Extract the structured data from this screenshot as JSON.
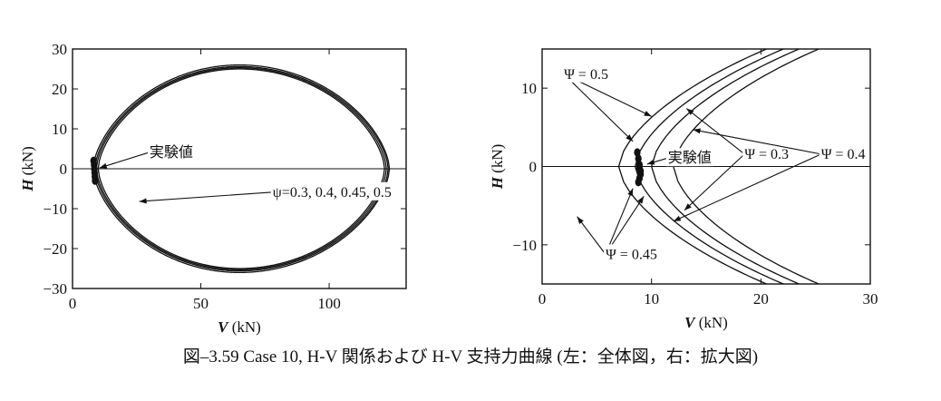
{
  "caption": "図‒3.59 Case 10, H-V 関係および H-V 支持力曲線 (左：全体図，右：拡大図)",
  "chart_data": [
    {
      "type": "line",
      "xlabel": "V (kN)",
      "ylabel": "H (kN)",
      "xlim": [
        0,
        130
      ],
      "ylim": [
        -30,
        30
      ],
      "xticks": [
        "0",
        "50",
        "100"
      ],
      "yticks": [
        "30",
        "20",
        "10",
        "0",
        "−10",
        "−20",
        "−30"
      ],
      "xtick_values": [
        0,
        50,
        100
      ],
      "ytick_values": [
        30,
        20,
        10,
        0,
        -10,
        -20,
        -30
      ],
      "series": [
        {
          "kind": "envelope",
          "v0": 8.0,
          "v1": 123.5,
          "hmax": 26.0,
          "peak_v": 65
        },
        {
          "kind": "envelope",
          "v0": 8.7,
          "v1": 123.0,
          "hmax": 25.6,
          "peak_v": 65
        },
        {
          "kind": "envelope",
          "v0": 9.3,
          "v1": 122.3,
          "hmax": 25.3,
          "peak_v": 65
        },
        {
          "kind": "envelope",
          "v0": 10.0,
          "v1": 121.6,
          "hmax": 25.0,
          "peak_v": 65
        },
        {
          "kind": "experiment",
          "v": [
            8.2,
            8.4,
            8.5,
            8.6,
            8.7,
            8.8
          ],
          "h": [
            2.0,
            1.0,
            0.0,
            -1.0,
            -2.0,
            -3.0
          ]
        }
      ],
      "annotations": [
        {
          "text": "実験値",
          "at": [
            30,
            3.0
          ],
          "arrow_to": [
            10.5,
            0.2
          ]
        },
        {
          "text": "ψ=0.3, 0.4, 0.45, 0.5",
          "at": [
            78,
            -7.0
          ],
          "arrow_to": [
            26,
            -8.2
          ]
        }
      ]
    },
    {
      "type": "line",
      "xlabel": "V (kN)",
      "ylabel": "H (kN)",
      "xlim": [
        0,
        30
      ],
      "ylim": [
        -15,
        15
      ],
      "xticks": [
        "0",
        "10",
        "20",
        "30"
      ],
      "yticks": [
        "10",
        "0",
        "−10"
      ],
      "xtick_values": [
        0,
        10,
        20,
        30
      ],
      "ytick_values": [
        10,
        0,
        -10
      ],
      "series": [
        {
          "kind": "envelope",
          "v0": 7.0,
          "v1": 123.5,
          "hmax": 26.0,
          "peak_v": 65
        },
        {
          "kind": "envelope",
          "v0": 8.5,
          "v1": 123.0,
          "hmax": 25.6,
          "peak_v": 65
        },
        {
          "kind": "envelope",
          "v0": 10.0,
          "v1": 122.3,
          "hmax": 25.3,
          "peak_v": 65
        },
        {
          "kind": "envelope",
          "v0": 12.0,
          "v1": 121.6,
          "hmax": 25.0,
          "peak_v": 65
        },
        {
          "kind": "experiment",
          "v": [
            8.7,
            8.8,
            8.9,
            8.9,
            9.0,
            9.0,
            8.9,
            8.8
          ],
          "h": [
            1.8,
            1.0,
            0.2,
            -0.2,
            -0.6,
            -1.0,
            -1.5,
            -2.0
          ]
        }
      ],
      "annotations": [
        {
          "text": "Ψ = 0.5",
          "at": [
            2.0,
            11.2
          ],
          "arrows_to": [
            [
              10.0,
              6.4
            ],
            [
              8.3,
              3.2
            ]
          ]
        },
        {
          "text": "Ψ = 0.45",
          "at": [
            5.8,
            -11.8
          ],
          "arrows_to": [
            [
              3.2,
              -6.4
            ],
            [
              8.3,
              -2.8
            ],
            [
              9.3,
              -3.8
            ]
          ]
        },
        {
          "text": "Ψ = 0.3",
          "at": [
            18.5,
            1.0
          ],
          "arrows_to": [
            [
              13.2,
              7.4
            ],
            [
              13.0,
              -5.6
            ]
          ]
        },
        {
          "text": "Ψ = 0.4",
          "at": [
            25.5,
            1.0
          ],
          "arrows_to": [
            [
              13.8,
              4.7
            ],
            [
              12.0,
              -7.0
            ]
          ]
        },
        {
          "text": "実験値",
          "at": [
            11.5,
            0.5
          ],
          "arrow_to": [
            9.6,
            0.3
          ]
        }
      ]
    }
  ]
}
